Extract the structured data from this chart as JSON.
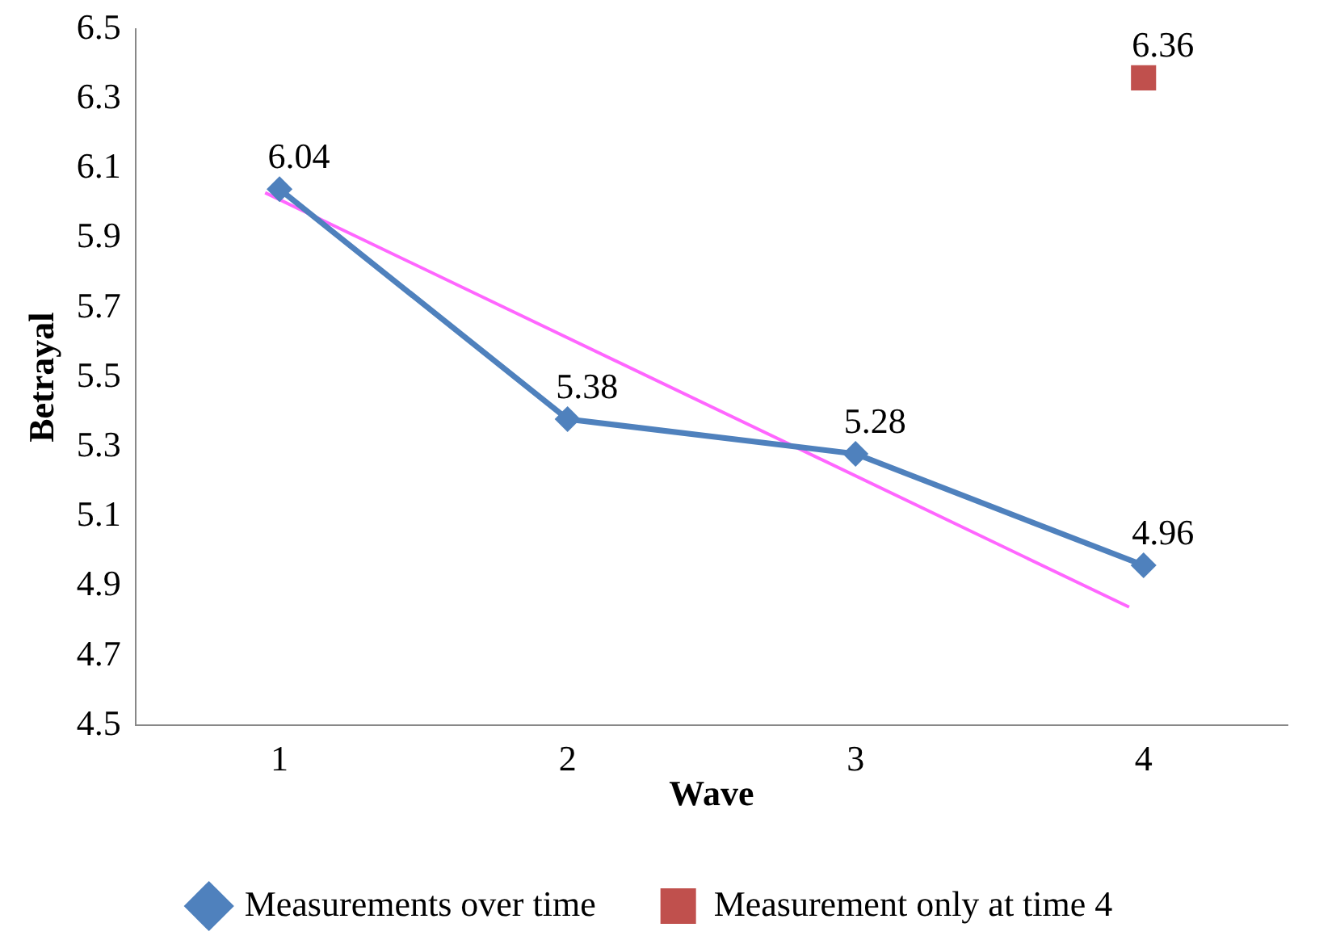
{
  "chart_data": {
    "type": "line",
    "xlabel": "Wave",
    "ylabel": "Betrayal",
    "xlim": [
      0.5,
      4.5
    ],
    "xticks": [
      1,
      2,
      3,
      4
    ],
    "ylim": [
      4.5,
      6.5
    ],
    "yticks": [
      4.5,
      4.7,
      4.9,
      5.1,
      5.3,
      5.5,
      5.7,
      5.9,
      6.1,
      6.3,
      6.5
    ],
    "grid": false,
    "legend": "bottom",
    "series": [
      {
        "name": "Measurements over time",
        "color": "#4f81bd",
        "x": [
          1,
          2,
          3,
          4
        ],
        "values": [
          6.04,
          5.38,
          5.28,
          4.96
        ],
        "value_labels": [
          "6.04",
          "5.38",
          "5.28",
          "4.96"
        ],
        "marker": "diamond"
      },
      {
        "name": "Measurement only at time 4",
        "type": "scatter",
        "color": "#c0504d",
        "x": [
          4
        ],
        "values": [
          6.36
        ],
        "value_labels": [
          "6.36"
        ],
        "marker": "square"
      },
      {
        "type": "line",
        "color": "#ff66ff",
        "x": [
          0.95,
          3.95
        ],
        "values": [
          6.03,
          4.84
        ],
        "marker": "none"
      }
    ]
  }
}
